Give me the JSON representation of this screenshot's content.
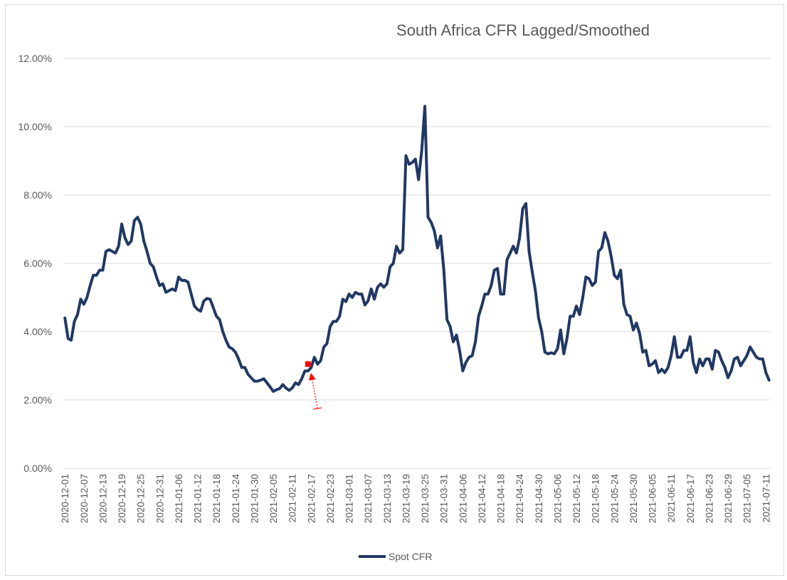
{
  "chart_data": {
    "type": "line",
    "title": "South Africa CFR Lagged/Smoothed",
    "xlabel": "",
    "ylabel": "",
    "ylim": [
      0,
      12
    ],
    "y_ticks": [
      "0.00%",
      "2.00%",
      "4.00%",
      "6.00%",
      "8.00%",
      "10.00%",
      "12.00%"
    ],
    "x_tick_labels": [
      "2020-12-01",
      "2020-12-07",
      "2020-12-13",
      "2020-12-19",
      "2020-12-25",
      "2020-12-31",
      "2021-01-06",
      "2021-01-12",
      "2021-01-18",
      "2021-01-24",
      "2021-01-30",
      "2021-02-05",
      "2021-02-11",
      "2021-02-17",
      "2021-02-23",
      "2021-03-01",
      "2021-03-07",
      "2021-03-13",
      "2021-03-19",
      "2021-03-25",
      "2021-03-31",
      "2021-04-06",
      "2021-04-12",
      "2021-04-18",
      "2021-04-24",
      "2021-04-30",
      "2021-05-06",
      "2021-05-12",
      "2021-05-18",
      "2021-05-24",
      "2021-05-30",
      "2021-06-05",
      "2021-06-11",
      "2021-06-17",
      "2021-06-23",
      "2021-06-29",
      "2021-07-05",
      "2021-07-11"
    ],
    "grid": true,
    "legend_position": "bottom",
    "line_color": "#203864",
    "series": [
      {
        "name": "Spot CFR",
        "points": [
          [
            "2020-12-01",
            4.4
          ],
          [
            "2020-12-02",
            3.8
          ],
          [
            "2020-12-03",
            3.75
          ],
          [
            "2020-12-04",
            4.3
          ],
          [
            "2020-12-05",
            4.5
          ],
          [
            "2020-12-06",
            4.95
          ],
          [
            "2020-12-07",
            4.8
          ],
          [
            "2020-12-08",
            5.0
          ],
          [
            "2020-12-09",
            5.35
          ],
          [
            "2020-12-10",
            5.65
          ],
          [
            "2020-12-11",
            5.65
          ],
          [
            "2020-12-12",
            5.8
          ],
          [
            "2020-12-13",
            5.8
          ],
          [
            "2020-12-14",
            6.35
          ],
          [
            "2020-12-15",
            6.4
          ],
          [
            "2020-12-16",
            6.35
          ],
          [
            "2020-12-17",
            6.3
          ],
          [
            "2020-12-18",
            6.5
          ],
          [
            "2020-12-19",
            7.15
          ],
          [
            "2020-12-20",
            6.75
          ],
          [
            "2020-12-21",
            6.55
          ],
          [
            "2020-12-22",
            6.65
          ],
          [
            "2020-12-23",
            7.25
          ],
          [
            "2020-12-24",
            7.35
          ],
          [
            "2020-12-25",
            7.15
          ],
          [
            "2020-12-26",
            6.65
          ],
          [
            "2020-12-27",
            6.35
          ],
          [
            "2020-12-28",
            6.0
          ],
          [
            "2020-12-29",
            5.9
          ],
          [
            "2020-12-30",
            5.6
          ],
          [
            "2020-12-31",
            5.35
          ],
          [
            "2021-01-01",
            5.4
          ],
          [
            "2021-01-02",
            5.15
          ],
          [
            "2021-01-03",
            5.2
          ],
          [
            "2021-01-04",
            5.25
          ],
          [
            "2021-01-05",
            5.2
          ],
          [
            "2021-01-06",
            5.6
          ],
          [
            "2021-01-07",
            5.5
          ],
          [
            "2021-01-08",
            5.5
          ],
          [
            "2021-01-09",
            5.45
          ],
          [
            "2021-01-10",
            5.1
          ],
          [
            "2021-01-11",
            4.75
          ],
          [
            "2021-01-12",
            4.65
          ],
          [
            "2021-01-13",
            4.6
          ],
          [
            "2021-01-14",
            4.9
          ],
          [
            "2021-01-15",
            4.97
          ],
          [
            "2021-01-16",
            4.95
          ],
          [
            "2021-01-17",
            4.7
          ],
          [
            "2021-01-18",
            4.45
          ],
          [
            "2021-01-19",
            4.35
          ],
          [
            "2021-01-20",
            4.0
          ],
          [
            "2021-01-21",
            3.75
          ],
          [
            "2021-01-22",
            3.55
          ],
          [
            "2021-01-23",
            3.5
          ],
          [
            "2021-01-24",
            3.4
          ],
          [
            "2021-01-25",
            3.2
          ],
          [
            "2021-01-26",
            2.95
          ],
          [
            "2021-01-27",
            2.95
          ],
          [
            "2021-01-28",
            2.75
          ],
          [
            "2021-01-29",
            2.65
          ],
          [
            "2021-01-30",
            2.55
          ],
          [
            "2021-01-31",
            2.55
          ],
          [
            "2021-02-01",
            2.58
          ],
          [
            "2021-02-02",
            2.62
          ],
          [
            "2021-02-03",
            2.5
          ],
          [
            "2021-02-04",
            2.38
          ],
          [
            "2021-02-05",
            2.25
          ],
          [
            "2021-02-06",
            2.3
          ],
          [
            "2021-02-07",
            2.33
          ],
          [
            "2021-02-08",
            2.45
          ],
          [
            "2021-02-09",
            2.35
          ],
          [
            "2021-02-10",
            2.28
          ],
          [
            "2021-02-11",
            2.35
          ],
          [
            "2021-02-12",
            2.5
          ],
          [
            "2021-02-13",
            2.45
          ],
          [
            "2021-02-14",
            2.62
          ],
          [
            "2021-02-15",
            2.85
          ],
          [
            "2021-02-16",
            2.85
          ],
          [
            "2021-02-17",
            2.95
          ],
          [
            "2021-02-18",
            3.25
          ],
          [
            "2021-02-19",
            3.05
          ],
          [
            "2021-02-20",
            3.15
          ],
          [
            "2021-02-21",
            3.55
          ],
          [
            "2021-02-22",
            3.65
          ],
          [
            "2021-02-23",
            4.15
          ],
          [
            "2021-02-24",
            4.3
          ],
          [
            "2021-02-25",
            4.3
          ],
          [
            "2021-02-26",
            4.45
          ],
          [
            "2021-02-27",
            4.95
          ],
          [
            "2021-02-28",
            4.88
          ],
          [
            "2021-03-01",
            5.1
          ],
          [
            "2021-03-02",
            5.0
          ],
          [
            "2021-03-03",
            5.15
          ],
          [
            "2021-03-04",
            5.1
          ],
          [
            "2021-03-05",
            5.1
          ],
          [
            "2021-03-06",
            4.78
          ],
          [
            "2021-03-07",
            4.9
          ],
          [
            "2021-03-08",
            5.25
          ],
          [
            "2021-03-09",
            4.95
          ],
          [
            "2021-03-10",
            5.3
          ],
          [
            "2021-03-11",
            5.4
          ],
          [
            "2021-03-12",
            5.3
          ],
          [
            "2021-03-13",
            5.4
          ],
          [
            "2021-03-14",
            5.9
          ],
          [
            "2021-03-15",
            6.0
          ],
          [
            "2021-03-16",
            6.5
          ],
          [
            "2021-03-17",
            6.3
          ],
          [
            "2021-03-18",
            6.4
          ],
          [
            "2021-03-19",
            9.15
          ],
          [
            "2021-03-20",
            8.9
          ],
          [
            "2021-03-21",
            8.95
          ],
          [
            "2021-03-22",
            9.05
          ],
          [
            "2021-03-23",
            8.45
          ],
          [
            "2021-03-24",
            9.3
          ],
          [
            "2021-03-25",
            10.6
          ],
          [
            "2021-03-26",
            7.35
          ],
          [
            "2021-03-27",
            7.2
          ],
          [
            "2021-03-28",
            6.95
          ],
          [
            "2021-03-29",
            6.45
          ],
          [
            "2021-03-30",
            6.8
          ],
          [
            "2021-03-31",
            5.8
          ],
          [
            "2021-04-01",
            4.35
          ],
          [
            "2021-04-02",
            4.15
          ],
          [
            "2021-04-03",
            3.7
          ],
          [
            "2021-04-04",
            3.9
          ],
          [
            "2021-04-05",
            3.45
          ],
          [
            "2021-04-06",
            2.85
          ],
          [
            "2021-04-07",
            3.1
          ],
          [
            "2021-04-08",
            3.25
          ],
          [
            "2021-04-09",
            3.3
          ],
          [
            "2021-04-10",
            3.7
          ],
          [
            "2021-04-11",
            4.45
          ],
          [
            "2021-04-12",
            4.75
          ],
          [
            "2021-04-13",
            5.1
          ],
          [
            "2021-04-14",
            5.1
          ],
          [
            "2021-04-15",
            5.35
          ],
          [
            "2021-04-16",
            5.8
          ],
          [
            "2021-04-17",
            5.85
          ],
          [
            "2021-04-18",
            5.1
          ],
          [
            "2021-04-19",
            5.1
          ],
          [
            "2021-04-20",
            6.1
          ],
          [
            "2021-04-21",
            6.3
          ],
          [
            "2021-04-22",
            6.5
          ],
          [
            "2021-04-23",
            6.3
          ],
          [
            "2021-04-24",
            6.75
          ],
          [
            "2021-04-25",
            7.6
          ],
          [
            "2021-04-26",
            7.75
          ],
          [
            "2021-04-27",
            6.35
          ],
          [
            "2021-04-28",
            5.75
          ],
          [
            "2021-04-29",
            5.2
          ],
          [
            "2021-04-30",
            4.4
          ],
          [
            "2021-05-01",
            4.0
          ],
          [
            "2021-05-02",
            3.4
          ],
          [
            "2021-05-03",
            3.35
          ],
          [
            "2021-05-04",
            3.38
          ],
          [
            "2021-05-05",
            3.35
          ],
          [
            "2021-05-06",
            3.5
          ],
          [
            "2021-05-07",
            4.05
          ],
          [
            "2021-05-08",
            3.35
          ],
          [
            "2021-05-09",
            3.8
          ],
          [
            "2021-05-10",
            4.45
          ],
          [
            "2021-05-11",
            4.45
          ],
          [
            "2021-05-12",
            4.75
          ],
          [
            "2021-05-13",
            4.5
          ],
          [
            "2021-05-14",
            5.0
          ],
          [
            "2021-05-15",
            5.6
          ],
          [
            "2021-05-16",
            5.55
          ],
          [
            "2021-05-17",
            5.35
          ],
          [
            "2021-05-18",
            5.45
          ],
          [
            "2021-05-19",
            6.35
          ],
          [
            "2021-05-20",
            6.45
          ],
          [
            "2021-05-21",
            6.9
          ],
          [
            "2021-05-22",
            6.65
          ],
          [
            "2021-05-23",
            6.2
          ],
          [
            "2021-05-24",
            5.65
          ],
          [
            "2021-05-25",
            5.55
          ],
          [
            "2021-05-26",
            5.8
          ],
          [
            "2021-05-27",
            4.8
          ],
          [
            "2021-05-28",
            4.5
          ],
          [
            "2021-05-29",
            4.45
          ],
          [
            "2021-05-30",
            4.05
          ],
          [
            "2021-05-31",
            4.25
          ],
          [
            "2021-06-01",
            3.95
          ],
          [
            "2021-06-02",
            3.4
          ],
          [
            "2021-06-03",
            3.45
          ],
          [
            "2021-06-04",
            3.0
          ],
          [
            "2021-06-05",
            3.05
          ],
          [
            "2021-06-06",
            3.15
          ],
          [
            "2021-06-07",
            2.8
          ],
          [
            "2021-06-08",
            2.9
          ],
          [
            "2021-06-09",
            2.8
          ],
          [
            "2021-06-10",
            2.95
          ],
          [
            "2021-06-11",
            3.3
          ],
          [
            "2021-06-12",
            3.85
          ],
          [
            "2021-06-13",
            3.25
          ],
          [
            "2021-06-14",
            3.25
          ],
          [
            "2021-06-15",
            3.45
          ],
          [
            "2021-06-16",
            3.45
          ],
          [
            "2021-06-17",
            3.85
          ],
          [
            "2021-06-18",
            3.1
          ],
          [
            "2021-06-19",
            2.8
          ],
          [
            "2021-06-20",
            3.2
          ],
          [
            "2021-06-21",
            3.0
          ],
          [
            "2021-06-22",
            3.2
          ],
          [
            "2021-06-23",
            3.2
          ],
          [
            "2021-06-24",
            2.9
          ],
          [
            "2021-06-25",
            3.45
          ],
          [
            "2021-06-26",
            3.4
          ],
          [
            "2021-06-27",
            3.15
          ],
          [
            "2021-06-28",
            2.95
          ],
          [
            "2021-06-29",
            2.65
          ],
          [
            "2021-06-30",
            2.85
          ],
          [
            "2021-07-01",
            3.2
          ],
          [
            "2021-07-02",
            3.25
          ],
          [
            "2021-07-03",
            3.0
          ],
          [
            "2021-07-04",
            3.15
          ],
          [
            "2021-07-05",
            3.3
          ],
          [
            "2021-07-06",
            3.55
          ],
          [
            "2021-07-07",
            3.4
          ],
          [
            "2021-07-08",
            3.25
          ],
          [
            "2021-07-09",
            3.2
          ],
          [
            "2021-07-10",
            3.2
          ],
          [
            "2021-07-11",
            2.8
          ],
          [
            "2021-07-12",
            2.58
          ]
        ]
      }
    ],
    "annotations": [
      {
        "type": "arrow",
        "color": "#ff0000",
        "style": "dotted",
        "from": [
          "2021-02-19",
          1.75
        ],
        "to": [
          "2021-02-17",
          2.75
        ]
      },
      {
        "type": "marker",
        "color": "#ff0000",
        "shape": "square",
        "at": [
          "2021-02-16",
          3.05
        ]
      }
    ]
  }
}
